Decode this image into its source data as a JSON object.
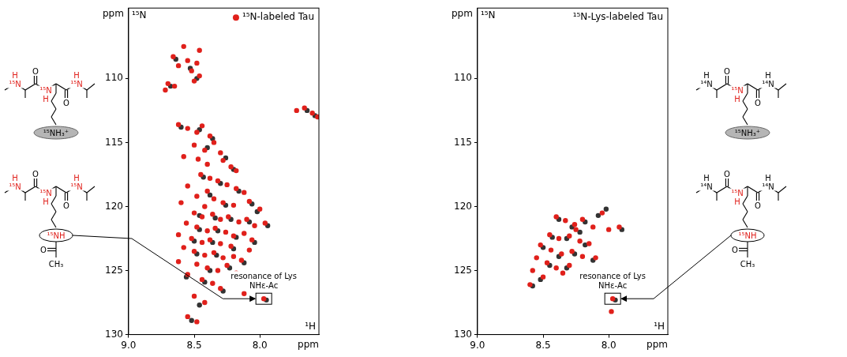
{
  "chart_data": [
    {
      "type": "scatter",
      "xlabel": "ppm",
      "ylabel": "ppm",
      "axis_nuclei": {
        "x": "¹H",
        "y": "¹⁵N"
      },
      "xlim": [
        9.0,
        7.55
      ],
      "ylim": [
        130,
        104.5
      ],
      "xticks": [
        {
          "value": 9,
          "label": "9.0"
        },
        8.5,
        {
          "value": 8,
          "label": "8.0"
        }
      ],
      "yticks": [
        110,
        115,
        120,
        125,
        130
      ],
      "grid": false,
      "legend": "top-right",
      "series": [
        {
          "name": "¹⁵N-labeled Tau",
          "color": "#e0201b",
          "marker": "circle",
          "x": [
            8.66,
            8.62,
            8.55,
            8.52,
            8.5,
            8.46,
            8.7,
            8.72,
            8.65,
            8.48,
            8.58,
            8.46,
            7.66,
            7.6,
            7.72,
            7.56,
            8.62,
            8.55,
            8.48,
            8.44,
            8.38,
            8.5,
            8.42,
            8.35,
            8.3,
            8.28,
            8.4,
            8.22,
            8.47,
            8.18,
            8.58,
            8.45,
            8.38,
            8.32,
            8.25,
            8.18,
            8.12,
            8.4,
            8.48,
            8.55,
            8.35,
            8.28,
            8.2,
            8.08,
            8.6,
            8.42,
            8.0,
            8.5,
            8.44,
            8.36,
            8.3,
            8.24,
            8.16,
            8.1,
            8.04,
            7.96,
            8.56,
            8.48,
            8.4,
            8.34,
            8.26,
            8.2,
            8.12,
            8.06,
            8.62,
            8.52,
            8.44,
            8.38,
            8.3,
            8.22,
            8.58,
            8.5,
            8.42,
            8.35,
            8.28,
            8.2,
            8.14,
            8.48,
            8.4,
            8.32,
            8.25,
            8.55,
            8.44,
            8.36,
            8.18,
            8.3,
            8.62,
            8.08,
            8.5,
            8.42,
            8.55,
            8.48,
            8.12,
            7.97
          ],
          "values": [
            108.3,
            109.0,
            108.6,
            109.4,
            110.2,
            109.8,
            110.4,
            110.9,
            110.6,
            108.8,
            107.5,
            107.8,
            112.3,
            112.7,
            112.5,
            113.0,
            113.6,
            113.9,
            114.2,
            113.7,
            114.5,
            115.2,
            115.6,
            115.0,
            115.8,
            116.4,
            116.7,
            116.9,
            116.3,
            117.2,
            116.1,
            117.5,
            117.8,
            118.0,
            118.3,
            118.6,
            118.9,
            118.8,
            119.2,
            118.4,
            119.4,
            119.7,
            119.9,
            119.6,
            119.7,
            120.0,
            120.2,
            120.5,
            120.8,
            120.6,
            121.0,
            120.8,
            121.2,
            121.0,
            121.5,
            121.3,
            121.3,
            121.6,
            121.9,
            121.7,
            122.0,
            122.3,
            122.1,
            122.6,
            122.2,
            122.5,
            122.8,
            122.6,
            122.9,
            123.1,
            123.2,
            123.5,
            123.8,
            123.6,
            124.0,
            123.9,
            124.2,
            124.5,
            124.8,
            125.0,
            124.6,
            125.3,
            125.7,
            126.0,
            125.2,
            126.4,
            124.3,
            123.4,
            127.0,
            127.5,
            128.6,
            129.0,
            126.8,
            127.2
          ]
        },
        {
          "color": "#333333",
          "marker": "circle",
          "x": [
            8.64,
            8.53,
            8.48,
            8.68,
            7.64,
            7.58,
            8.6,
            8.46,
            8.36,
            8.4,
            8.26,
            8.2,
            8.43,
            8.3,
            8.16,
            8.38,
            8.26,
            8.06,
            8.46,
            8.34,
            8.22,
            8.08,
            7.94,
            8.46,
            8.32,
            8.18,
            8.04,
            8.5,
            8.36,
            8.2,
            8.48,
            8.33,
            8.12,
            8.38,
            8.23,
            8.42,
            8.28,
            8.46,
            8.52,
            7.95,
            8.56,
            8.02
          ],
          "values": [
            108.5,
            109.2,
            110.0,
            110.6,
            112.5,
            112.9,
            113.8,
            114.0,
            114.7,
            115.4,
            116.2,
            117.1,
            117.7,
            118.2,
            118.8,
            119.1,
            119.9,
            119.8,
            120.7,
            120.9,
            121.0,
            121.2,
            121.5,
            121.8,
            121.9,
            122.4,
            122.8,
            122.7,
            122.8,
            123.3,
            123.7,
            123.8,
            124.4,
            125.0,
            124.8,
            125.9,
            126.6,
            127.7,
            128.9,
            127.3,
            125.5,
            120.4
          ]
        }
      ],
      "annotations": [
        {
          "text": "resonance of Lys NHε-Ac",
          "x": 7.97,
          "y": 127.2
        }
      ]
    },
    {
      "type": "scatter",
      "title": "¹⁵N-Lys-labeled Tau",
      "xlabel": "ppm",
      "ylabel": "ppm",
      "axis_nuclei": {
        "x": "¹H",
        "y": "¹⁵N"
      },
      "xlim": [
        9.0,
        7.55
      ],
      "ylim": [
        130,
        104.5
      ],
      "xticks": [
        {
          "value": 9,
          "label": "9.0"
        },
        8.5,
        {
          "value": 8,
          "label": "8.0"
        }
      ],
      "yticks": [
        110,
        115,
        120,
        125,
        130
      ],
      "grid": false,
      "series": [
        {
          "color": "#e0201b",
          "marker": "circle",
          "x": [
            8.4,
            8.33,
            8.26,
            8.2,
            8.12,
            8.05,
            8.0,
            7.92,
            8.45,
            8.38,
            8.3,
            8.22,
            8.15,
            8.52,
            8.44,
            8.36,
            8.28,
            8.2,
            8.55,
            8.47,
            8.4,
            8.3,
            8.58,
            8.5,
            8.6,
            8.35,
            8.1,
            8.25,
            7.97,
            7.98
          ],
          "values": [
            120.8,
            121.1,
            121.4,
            121.0,
            121.6,
            120.5,
            121.8,
            121.6,
            122.2,
            122.5,
            122.3,
            122.7,
            122.9,
            123.0,
            123.4,
            123.7,
            123.5,
            123.9,
            124.0,
            124.4,
            124.8,
            124.6,
            125.0,
            125.5,
            126.1,
            125.2,
            124.0,
            121.8,
            127.2,
            128.2
          ]
        },
        {
          "color": "#333333",
          "marker": "circle",
          "x": [
            8.38,
            8.28,
            8.18,
            8.08,
            7.9,
            8.43,
            8.32,
            8.18,
            8.5,
            8.38,
            8.26,
            8.45,
            8.32,
            8.52,
            8.58,
            8.12,
            7.95,
            8.02,
            8.22
          ],
          "values": [
            121.0,
            121.6,
            121.2,
            120.7,
            121.8,
            122.4,
            122.5,
            123.0,
            123.2,
            123.9,
            123.7,
            124.6,
            124.8,
            125.7,
            126.2,
            124.2,
            127.3,
            120.2,
            122.0
          ]
        }
      ],
      "annotations": [
        {
          "text": "resonance of Lys NHε-Ac",
          "x": 7.97,
          "y": 127.2
        }
      ]
    }
  ],
  "structures": {
    "left": [
      {
        "backbone_n": [
          "¹⁵NH",
          "¹⁵NH",
          "¹⁵NH"
        ],
        "backbone_o": [
          "O",
          "O"
        ],
        "side_chain_n": "¹⁵NH₃⁺"
      },
      {
        "backbone_n": [
          "¹⁵NH",
          "¹⁵NH",
          "¹⁵NH"
        ],
        "backbone_o": [
          "O",
          "O"
        ],
        "side_chain_n": "¹⁵NH",
        "acetyl": {
          "carbonyl": "O",
          "methyl": "CH₃"
        }
      }
    ],
    "right": [
      {
        "backbone_n": [
          "¹⁴NH",
          "¹⁵NH",
          "¹⁴NH"
        ],
        "backbone_o": [
          "O",
          "O"
        ],
        "side_chain_n": "¹⁵NH₃⁺"
      },
      {
        "backbone_n": [
          "¹⁴NH",
          "¹⁵NH",
          "¹⁴NH"
        ],
        "backbone_o": [
          "O",
          "O"
        ],
        "side_chain_n": "¹⁵NH",
        "acetyl": {
          "carbonyl": "O",
          "methyl": "CH₃"
        }
      }
    ]
  }
}
